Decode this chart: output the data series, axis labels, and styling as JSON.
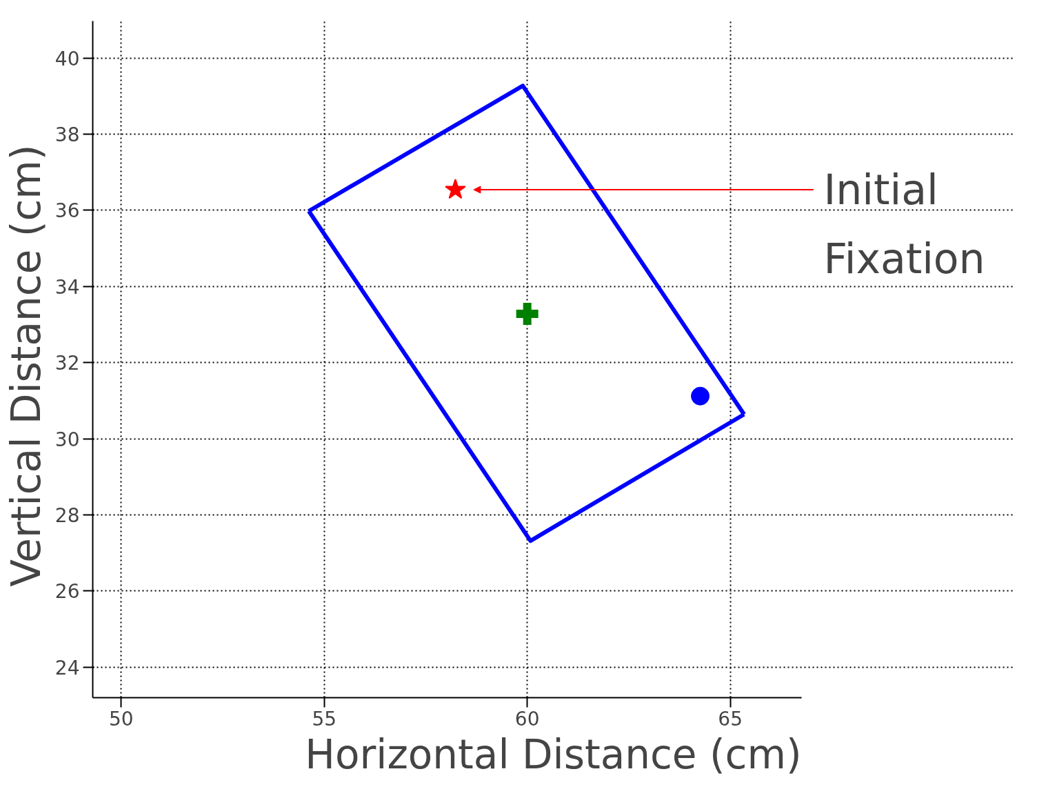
{
  "chart_data": {
    "type": "scatter",
    "xlabel": "Horizontal Distance (cm)",
    "ylabel": "Vertical  Distance (cm)",
    "xlim": [
      49.3,
      66.75
    ],
    "ylim": [
      23.2,
      40.97
    ],
    "xticks": [
      50,
      55,
      60,
      65
    ],
    "yticks": [
      24,
      26,
      28,
      30,
      32,
      34,
      36,
      38,
      40
    ],
    "grid": true,
    "series": [
      {
        "type": "line",
        "color": "#0000ff",
        "line_style": "solid",
        "marker": "none",
        "x": [
          54.62,
          59.89,
          65.34
        ],
        "values": [
          35.98,
          39.27,
          30.64
        ]
      },
      {
        "type": "line",
        "color": "#0000ff",
        "line_style": "solid",
        "marker": "none",
        "x": [
          54.62,
          60.08,
          65.34
        ],
        "values": [
          35.98,
          27.32,
          30.64
        ]
      },
      {
        "color": "#ff0000",
        "marker": "star",
        "x": [
          58.23
        ],
        "values": [
          36.54
        ]
      },
      {
        "color": "#008000",
        "marker": "cross",
        "x": [
          60.0
        ],
        "values": [
          33.28
        ]
      },
      {
        "color": "#0000ff",
        "marker": "circle",
        "x": [
          64.26
        ],
        "values": [
          31.12
        ]
      }
    ],
    "annotations": [
      "Initial\nFixation"
    ]
  }
}
